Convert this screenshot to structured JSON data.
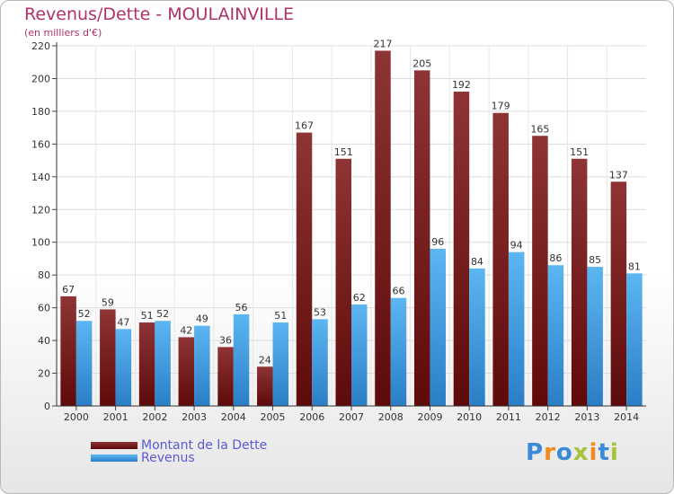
{
  "title": "Revenus/Dette - MOULAINVILLE",
  "subtitle": "(en milliers d'€)",
  "brand": {
    "letters": [
      "P",
      "r",
      "o",
      "x",
      "i",
      "t",
      "i"
    ],
    "colors": [
      "#3a8ad6",
      "#f08a1c",
      "#3a8ad6",
      "#a4c43a",
      "#f08a1c",
      "#3a8ad6",
      "#a4c43a"
    ]
  },
  "chart_data": {
    "type": "bar",
    "categories": [
      "2000",
      "2001",
      "2002",
      "2003",
      "2004",
      "2005",
      "2006",
      "2007",
      "2008",
      "2009",
      "2010",
      "2011",
      "2012",
      "2013",
      "2014"
    ],
    "series": [
      {
        "name": "Montant de la Dette",
        "color": "#7a1c1c",
        "values": [
          67,
          59,
          51,
          42,
          36,
          24,
          167,
          151,
          217,
          205,
          192,
          179,
          165,
          151,
          137
        ]
      },
      {
        "name": "Revenus",
        "color": "#3a9ae0",
        "values": [
          52,
          47,
          52,
          49,
          56,
          51,
          53,
          62,
          66,
          96,
          84,
          94,
          86,
          85,
          81
        ]
      }
    ],
    "ylim": [
      0,
      220
    ],
    "yticks": [
      0,
      20,
      40,
      60,
      80,
      100,
      120,
      140,
      160,
      180,
      200,
      220
    ],
    "grid": true,
    "legend_position": "bottom-left"
  }
}
